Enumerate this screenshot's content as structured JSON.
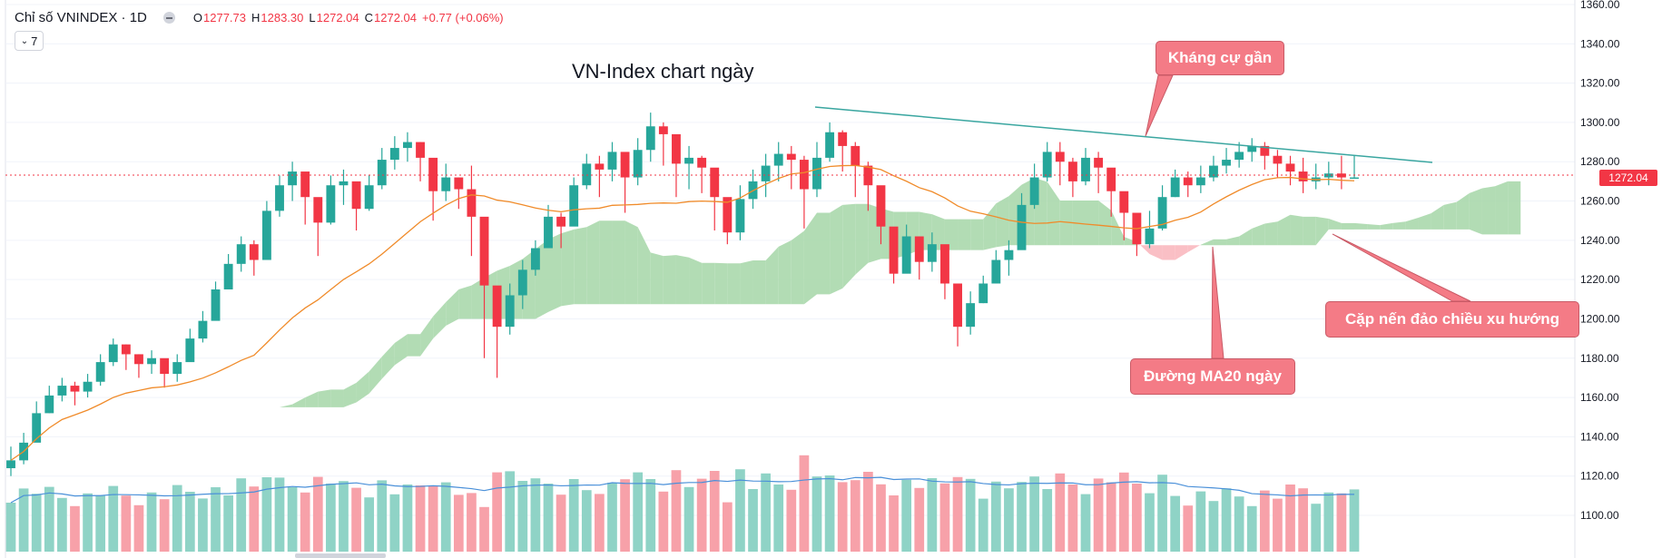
{
  "header": {
    "symbol": "Chỉ số VNINDEX · 1D",
    "o_key": "O",
    "o_val": "1277.73",
    "h_key": "H",
    "h_val": "1283.30",
    "l_key": "L",
    "l_val": "1272.04",
    "c_key": "C",
    "c_val": "1272.04",
    "change": "+0.77 (+0.06%)",
    "indicators_count": "7"
  },
  "chart_title": "VN-Index chart ngày",
  "callouts": {
    "resistance": "Kháng cự gần",
    "ma20": "Đường MA20 ngày",
    "reversal": "Cặp nến đảo chiều xu hướng"
  },
  "price_tag": "1272.04",
  "colors": {
    "up": "#26a69a",
    "down": "#f23645",
    "ma": "#f08b2a",
    "cloud_up": "#a5d6a7",
    "cloud_down": "#f9b4bb",
    "vol_ma": "#4a90d9",
    "trend": "#3aa6a0"
  },
  "chart_data": {
    "type": "candlestick",
    "title": "VN-Index chart ngày",
    "ylim": [
      1090,
      1360
    ],
    "yticks": [
      1100,
      1120,
      1140,
      1160,
      1180,
      1200,
      1220,
      1240,
      1260,
      1280,
      1300,
      1320,
      1340,
      1360
    ],
    "ytick_labels": [
      "1100.00",
      "1120.00",
      "1140.00",
      "1160.00",
      "1180.00",
      "1200.00",
      "1220.00",
      "1240.00",
      "1260.00",
      "1280.00",
      "1300.00",
      "1320.00",
      "1340.00",
      "1360.00"
    ],
    "last_price": 1272.04,
    "series": [
      {
        "name": "VNINDEX",
        "x": [
          0,
          2,
          4,
          6,
          8,
          10,
          12,
          14,
          16,
          18,
          20,
          22,
          24,
          26,
          28,
          30,
          32,
          34,
          36,
          38,
          40,
          42,
          44,
          46,
          48,
          50,
          52,
          54,
          56,
          58,
          60,
          62,
          64,
          66,
          68,
          70,
          72,
          74,
          76,
          78,
          80,
          82,
          84,
          86,
          88,
          90,
          92,
          94,
          96,
          98,
          100,
          102,
          104,
          106,
          108,
          110,
          112,
          114,
          116,
          118,
          120,
          122,
          124,
          126,
          128,
          130,
          132,
          134,
          136,
          138,
          140,
          142,
          144,
          146,
          148,
          150,
          152,
          154,
          156,
          158,
          160,
          162,
          164,
          166,
          168,
          170,
          172,
          174,
          176,
          178,
          180,
          182,
          184,
          186,
          188,
          190,
          192,
          194,
          196,
          198,
          200,
          202,
          204,
          206,
          208,
          210
        ],
        "close": [
          1128,
          1137,
          1152,
          1161,
          1166,
          1163,
          1168,
          1178,
          1187,
          1182,
          1177,
          1180,
          1172,
          1178,
          1190,
          1199,
          1215,
          1228,
          1238,
          1230,
          1255,
          1268,
          1275,
          1262,
          1249,
          1268,
          1270,
          1256,
          1268,
          1281,
          1287,
          1290,
          1282,
          1265,
          1272,
          1266,
          1252,
          1217,
          1196,
          1212,
          1225,
          1236,
          1252,
          1247,
          1268,
          1279,
          1276,
          1285,
          1272,
          1286,
          1298,
          1294,
          1279,
          1282,
          1277,
          1262,
          1244,
          1261,
          1270,
          1278,
          1284,
          1281,
          1266,
          1282,
          1295,
          1288,
          1278,
          1268,
          1247,
          1223,
          1242,
          1229,
          1238,
          1218,
          1196,
          1208,
          1218,
          1230,
          1235,
          1258,
          1272,
          1285,
          1280,
          1270,
          1282,
          1277,
          1265,
          1254,
          1238,
          1246,
          1262,
          1272,
          1268,
          1272,
          1278,
          1281,
          1285,
          1288,
          1283,
          1279,
          1275,
          1270,
          1272,
          1274,
          1272,
          1272
        ],
        "high": [
          1135,
          1142,
          1158,
          1166,
          1170,
          1168,
          1172,
          1182,
          1190,
          1187,
          1182,
          1184,
          1178,
          1182,
          1195,
          1204,
          1219,
          1233,
          1242,
          1240,
          1260,
          1273,
          1280,
          1270,
          1256,
          1273,
          1276,
          1264,
          1273,
          1287,
          1293,
          1295,
          1290,
          1275,
          1279,
          1272,
          1278,
          1222,
          1204,
          1218,
          1230,
          1240,
          1258,
          1254,
          1272,
          1284,
          1283,
          1290,
          1282,
          1292,
          1305,
          1300,
          1290,
          1288,
          1283,
          1275,
          1252,
          1268,
          1276,
          1284,
          1290,
          1288,
          1283,
          1290,
          1300,
          1296,
          1290,
          1280,
          1260,
          1238,
          1248,
          1242,
          1244,
          1232,
          1218,
          1214,
          1222,
          1235,
          1240,
          1264,
          1279,
          1290,
          1290,
          1282,
          1287,
          1285,
          1276,
          1262,
          1252,
          1255,
          1268,
          1276,
          1275,
          1278,
          1283,
          1287,
          1290,
          1292,
          1290,
          1286,
          1283,
          1282,
          1279,
          1280,
          1283,
          1283
        ],
        "low": [
          1120,
          1126,
          1140,
          1152,
          1158,
          1156,
          1160,
          1166,
          1176,
          1174,
          1170,
          1172,
          1165,
          1168,
          1180,
          1188,
          1204,
          1218,
          1224,
          1222,
          1230,
          1252,
          1260,
          1248,
          1232,
          1248,
          1258,
          1245,
          1255,
          1266,
          1276,
          1280,
          1270,
          1250,
          1260,
          1256,
          1232,
          1180,
          1170,
          1192,
          1205,
          1222,
          1238,
          1236,
          1252,
          1266,
          1262,
          1270,
          1254,
          1268,
          1280,
          1278,
          1262,
          1266,
          1264,
          1245,
          1238,
          1240,
          1256,
          1262,
          1270,
          1266,
          1246,
          1262,
          1280,
          1275,
          1262,
          1255,
          1238,
          1218,
          1226,
          1220,
          1224,
          1210,
          1186,
          1192,
          1208,
          1218,
          1222,
          1236,
          1256,
          1270,
          1268,
          1262,
          1268,
          1264,
          1252,
          1240,
          1232,
          1236,
          1245,
          1262,
          1262,
          1264,
          1270,
          1274,
          1277,
          1280,
          1276,
          1272,
          1268,
          1264,
          1266,
          1268,
          1266,
          1272
        ]
      },
      {
        "name": "MA20",
        "type": "line"
      },
      {
        "name": "Ichimoku cloud",
        "type": "area"
      },
      {
        "name": "Volume",
        "type": "bar"
      }
    ],
    "annotations": [
      "Kháng cự gần",
      "Đường MA20 ngày",
      "Cặp nến đảo chiều xu hướng"
    ]
  }
}
